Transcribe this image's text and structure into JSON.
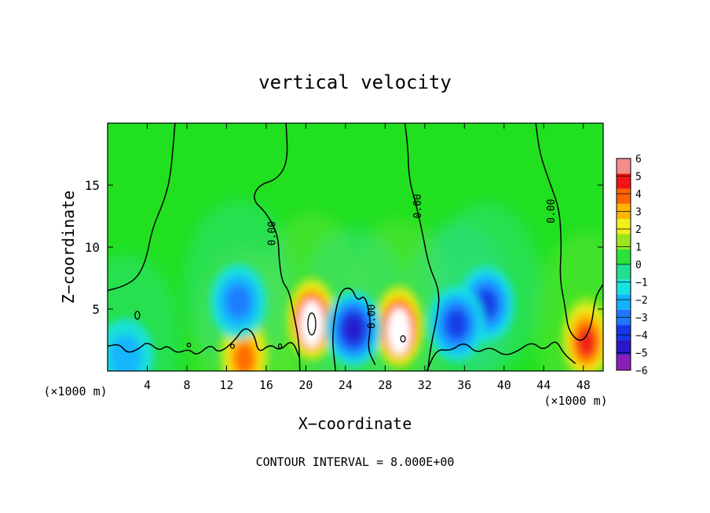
{
  "chart_data": {
    "type": "heatmap",
    "title": "vertical velocity",
    "xlabel": "X−coordinate",
    "ylabel": "Z−coordinate",
    "x_unit_label_left": "(×1000 m)",
    "x_unit_label_right": "(×1000 m)",
    "xlim": [
      0,
      50
    ],
    "ylim": [
      0,
      20
    ],
    "x_ticks": [
      4,
      8,
      12,
      16,
      20,
      24,
      28,
      32,
      36,
      40,
      44,
      48
    ],
    "x_tick_labels": [
      "4",
      "8",
      "12",
      "16",
      "20",
      "24",
      "28",
      "32",
      "36",
      "40",
      "44",
      "48"
    ],
    "y_ticks": [
      5,
      10,
      15
    ],
    "y_tick_labels": [
      "5",
      "10",
      "15"
    ],
    "footer": "CONTOUR INTERVAL = 8.000E+00",
    "contour_label": "0.00",
    "colorbar": {
      "levels": [
        -6,
        -5,
        -4,
        -3,
        -2,
        -1,
        0,
        1,
        2,
        3,
        4,
        5,
        6
      ],
      "labels": [
        "−6",
        "−5",
        "−4",
        "−3",
        "−2",
        "−1",
        "0",
        "1",
        "2",
        "3",
        "4",
        "5",
        "6"
      ],
      "colors": [
        "#8a1fb8",
        "#2a18c8",
        "#1438e6",
        "#1e78ff",
        "#14b2ff",
        "#18e2e2",
        "#20e090",
        "#2ae23a",
        "#9ae61e",
        "#f0f01e",
        "#ffb400",
        "#ff6400",
        "#f01414",
        "#f48c8c"
      ]
    },
    "features": [
      {
        "kind": "updraft",
        "x": 20.6,
        "z": 4.2,
        "peak": 7
      },
      {
        "kind": "updraft",
        "x": 29.4,
        "z": 3.6,
        "peak": 7
      },
      {
        "kind": "updraft",
        "x": 48.3,
        "z": 2.6,
        "peak": 4.5
      },
      {
        "kind": "updraft",
        "x": 13.8,
        "z": 1.3,
        "peak": 3.5
      },
      {
        "kind": "downdraft",
        "x": 24.8,
        "z": 3.4,
        "peak": -4.5
      },
      {
        "kind": "downdraft",
        "x": 38.2,
        "z": 5.4,
        "peak": -4
      },
      {
        "kind": "downdraft",
        "x": 35.2,
        "z": 3.8,
        "peak": -3.5
      },
      {
        "kind": "downdraft",
        "x": 13.2,
        "z": 5.6,
        "peak": -2.5
      },
      {
        "kind": "downdraft",
        "x": 1.8,
        "z": 1.2,
        "peak": -2
      }
    ]
  }
}
